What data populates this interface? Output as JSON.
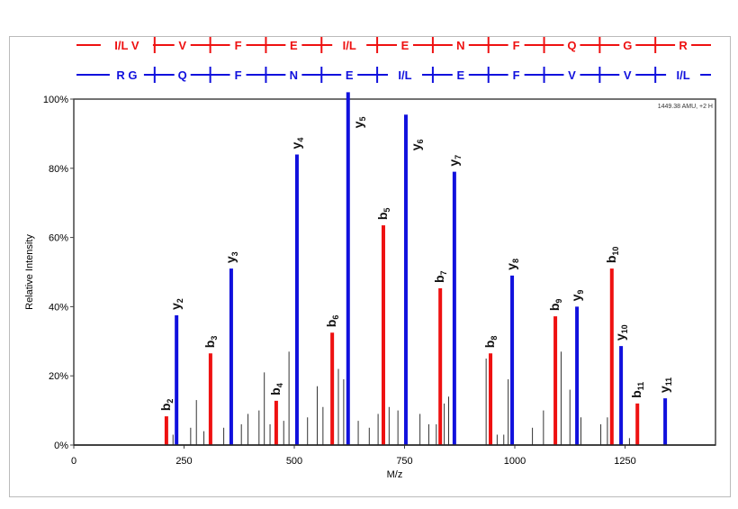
{
  "chart_data": {
    "type": "bar",
    "xlabel": "M/z",
    "ylabel": "Relative Intensity",
    "xlim": [
      0,
      1460
    ],
    "ylim": [
      0,
      100
    ],
    "xticks": [
      "0",
      "250",
      "500",
      "750",
      "1000",
      "1250"
    ],
    "yticks": [
      "0%",
      "20%",
      "40%",
      "60%",
      "80%",
      "100%"
    ],
    "annotation": "1449.38 AMU, +2 H",
    "colors": {
      "b": "#ee1111",
      "y": "#1111dd",
      "other": "#333333"
    },
    "sequence_b": [
      "I/L V",
      "V",
      "F",
      "E",
      "I/L",
      "E",
      "N",
      "F",
      "Q",
      "G",
      "R"
    ],
    "sequence_y": [
      "R G",
      "Q",
      "F",
      "N",
      "E",
      "I/L",
      "E",
      "F",
      "V",
      "V",
      "I/L"
    ],
    "series": [
      {
        "name": "b",
        "peaks": [
          {
            "label": "b",
            "sub": "2",
            "mz": 210,
            "int": 8.3
          },
          {
            "label": "b",
            "sub": "3",
            "mz": 310,
            "int": 26.5
          },
          {
            "label": "b",
            "sub": "4",
            "mz": 459,
            "int": 12.8
          },
          {
            "label": "b",
            "sub": "6",
            "mz": 586,
            "int": 32.5
          },
          {
            "label": "b",
            "sub": "5",
            "mz": 702,
            "int": 63.5
          },
          {
            "label": "b",
            "sub": "7",
            "mz": 831,
            "int": 45.3
          },
          {
            "label": "b",
            "sub": "8",
            "mz": 945,
            "int": 26.5
          },
          {
            "label": "b",
            "sub": "9",
            "mz": 1092,
            "int": 37.2
          },
          {
            "label": "b",
            "sub": "10",
            "mz": 1220,
            "int": 51
          },
          {
            "label": "b",
            "sub": "11",
            "mz": 1278,
            "int": 12
          }
        ]
      },
      {
        "name": "y",
        "peaks": [
          {
            "label": "y",
            "sub": "2",
            "mz": 233,
            "int": 37.5
          },
          {
            "label": "y",
            "sub": "3",
            "mz": 357,
            "int": 51
          },
          {
            "label": "y",
            "sub": "4",
            "mz": 506,
            "int": 84
          },
          {
            "label": "y",
            "sub": "5",
            "mz": 622,
            "int": 102
          },
          {
            "label": "y",
            "sub": "6",
            "mz": 753,
            "int": 95.5
          },
          {
            "label": "y",
            "sub": "7",
            "mz": 863,
            "int": 79
          },
          {
            "label": "y",
            "sub": "8",
            "mz": 994,
            "int": 49
          },
          {
            "label": "y",
            "sub": "9",
            "mz": 1141,
            "int": 40
          },
          {
            "label": "y",
            "sub": "10",
            "mz": 1241,
            "int": 28.6
          },
          {
            "label": "y",
            "sub": "11",
            "mz": 1341,
            "int": 13.5
          }
        ]
      },
      {
        "name": "other",
        "peaks": [
          {
            "mz": 225,
            "int": 3
          },
          {
            "mz": 265,
            "int": 5
          },
          {
            "mz": 278,
            "int": 13
          },
          {
            "mz": 295,
            "int": 4
          },
          {
            "mz": 340,
            "int": 5
          },
          {
            "mz": 380,
            "int": 6
          },
          {
            "mz": 395,
            "int": 9
          },
          {
            "mz": 420,
            "int": 10
          },
          {
            "mz": 432,
            "int": 21
          },
          {
            "mz": 445,
            "int": 6
          },
          {
            "mz": 476,
            "int": 7
          },
          {
            "mz": 488,
            "int": 27
          },
          {
            "mz": 530,
            "int": 8
          },
          {
            "mz": 552,
            "int": 17
          },
          {
            "mz": 565,
            "int": 11
          },
          {
            "mz": 600,
            "int": 22
          },
          {
            "mz": 612,
            "int": 19
          },
          {
            "mz": 645,
            "int": 7
          },
          {
            "mz": 670,
            "int": 5
          },
          {
            "mz": 690,
            "int": 9
          },
          {
            "mz": 715,
            "int": 11
          },
          {
            "mz": 735,
            "int": 10
          },
          {
            "mz": 785,
            "int": 9
          },
          {
            "mz": 805,
            "int": 6
          },
          {
            "mz": 822,
            "int": 6
          },
          {
            "mz": 840,
            "int": 12
          },
          {
            "mz": 850,
            "int": 14
          },
          {
            "mz": 935,
            "int": 25
          },
          {
            "mz": 960,
            "int": 3
          },
          {
            "mz": 975,
            "int": 3
          },
          {
            "mz": 985,
            "int": 19
          },
          {
            "mz": 1040,
            "int": 5
          },
          {
            "mz": 1065,
            "int": 10
          },
          {
            "mz": 1105,
            "int": 27
          },
          {
            "mz": 1125,
            "int": 16
          },
          {
            "mz": 1150,
            "int": 8
          },
          {
            "mz": 1195,
            "int": 6
          },
          {
            "mz": 1210,
            "int": 8
          },
          {
            "mz": 1260,
            "int": 2
          }
        ]
      }
    ]
  }
}
